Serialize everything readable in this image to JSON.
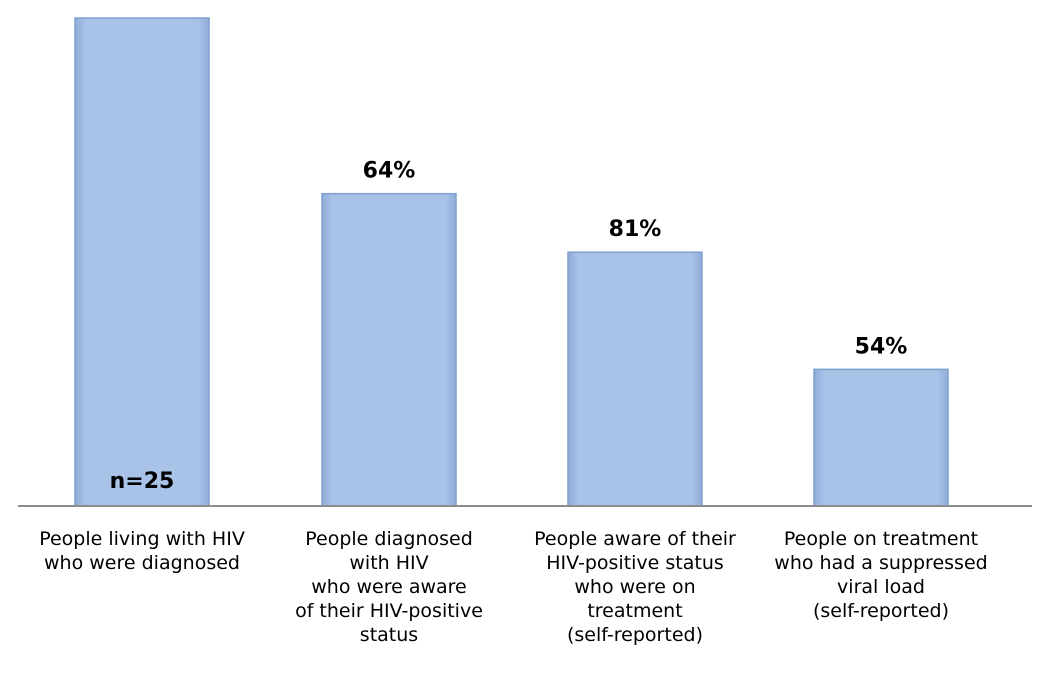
{
  "chart_data": {
    "type": "bar",
    "categories": [
      "People living with HIV\nwho were diagnosed",
      "People diagnosed\nwith HIV\nwho were aware\nof their HIV-positive\nstatus",
      "People aware of their\nHIV-positive  status\nwho were on\ntreatment\n(self-reported)",
      "People on treatment\nwho had a suppressed\nviral load\n(self-reported)"
    ],
    "values": [
      25,
      16,
      13,
      7
    ],
    "data_labels": [
      "n=25",
      "64%",
      "81%",
      "54%"
    ],
    "title": "",
    "xlabel": "",
    "ylabel": "",
    "ylim": [
      0,
      25
    ],
    "grid": false,
    "legend": "none",
    "colors": {
      "bar_fill": "#a4bee6",
      "bar_stroke": "#7f9fcf",
      "axis": "#8c8c8c"
    }
  }
}
